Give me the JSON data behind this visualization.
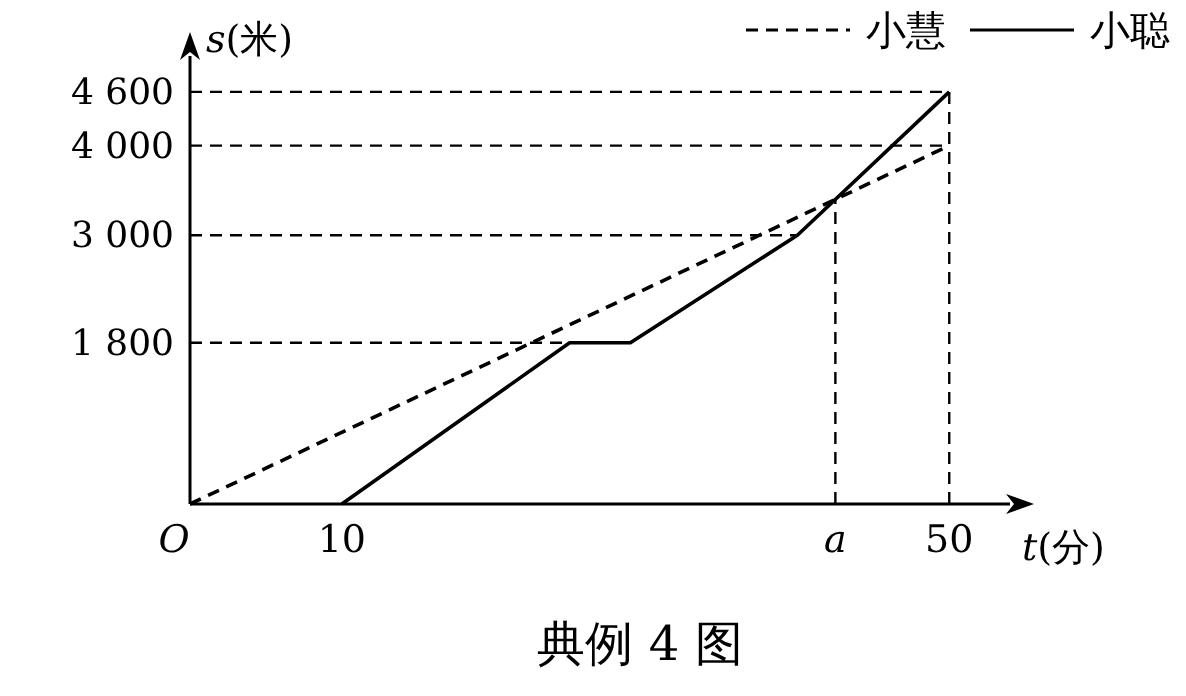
{
  "chart_data": {
    "type": "line",
    "title": "典例 4 图",
    "xlabel": "t(分)",
    "ylabel": "s(米)",
    "xlim": [
      0,
      54
    ],
    "ylim": [
      0,
      5000
    ],
    "xticks": [
      {
        "value": 0,
        "label": "O"
      },
      10,
      {
        "value": 42.5,
        "label": "a"
      },
      50
    ],
    "yticks": [
      {
        "value": 1800,
        "label": "1 800"
      },
      {
        "value": 3000,
        "label": "3 000"
      },
      {
        "value": 4000,
        "label": "4 000"
      },
      {
        "value": 4600,
        "label": "4 600"
      }
    ],
    "series": [
      {
        "name": "小慧",
        "color": "#000000",
        "line_style": "dashed",
        "x": [
          0,
          50
        ],
        "values": [
          0,
          4000
        ]
      },
      {
        "name": "小聪",
        "color": "#000000",
        "line_style": "solid",
        "x": [
          10,
          25,
          29,
          40,
          50
        ],
        "values": [
          0,
          1800,
          1800,
          3000,
          4600
        ]
      }
    ],
    "ref_lines": [
      {
        "axis": "y",
        "value": 1800,
        "line_style": "dashed"
      },
      {
        "axis": "y",
        "value": 3000,
        "line_style": "dashed"
      },
      {
        "axis": "y",
        "value": 4000,
        "line_style": "dashed"
      },
      {
        "axis": "y",
        "value": 4600,
        "line_style": "dashed"
      },
      {
        "axis": "x",
        "value": 42.5,
        "line_style": "dashed"
      },
      {
        "axis": "x",
        "value": 50,
        "line_style": "dashed"
      }
    ],
    "legend": "top right"
  }
}
